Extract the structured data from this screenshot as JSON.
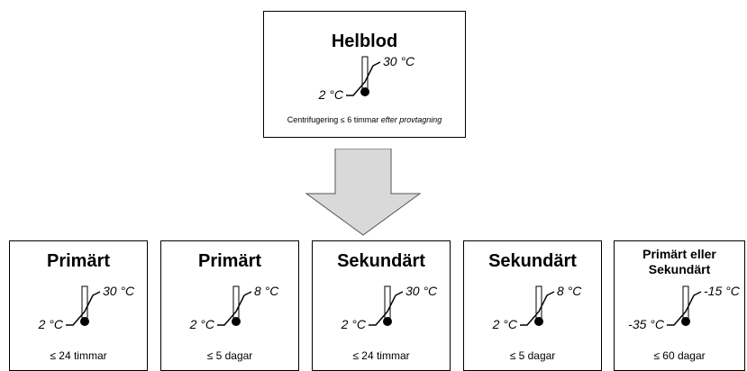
{
  "top": {
    "title": "Helblod",
    "high": "30 °C",
    "low": "2 °C",
    "caption": "Centrifugering ≤ 6 timmar",
    "caption_italic": "efter provtagning"
  },
  "boxes": [
    {
      "title": "Primärt",
      "high": "30 °C",
      "low": "2 °C",
      "duration": "≤ 24 timmar"
    },
    {
      "title": "Primärt",
      "high": "8 °C",
      "low": "2 °C",
      "duration": "≤ 5 dagar"
    },
    {
      "title": "Sekundärt",
      "high": "30 °C",
      "low": "2 °C",
      "duration": "≤ 24 timmar"
    },
    {
      "title": "Sekundärt",
      "high": "8 °C",
      "low": "2 °C",
      "duration": "≤ 5 dagar"
    },
    {
      "title": "Primärt eller Sekundärt",
      "high": "-15 °C",
      "low": "-35 °C",
      "duration": "≤ 60 dagar"
    }
  ]
}
